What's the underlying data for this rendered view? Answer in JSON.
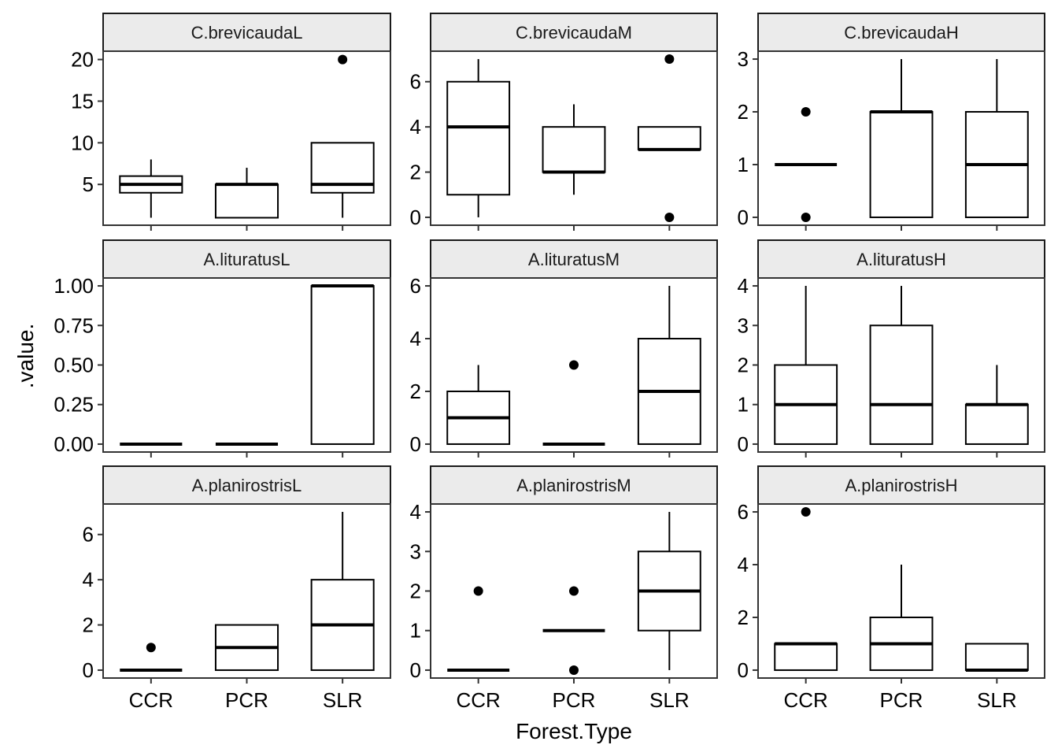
{
  "chart_data": {
    "type": "boxplot",
    "layout": "facet grid 3x3, free y scales",
    "xlabel": "Forest.Type",
    "ylabel": ".value.",
    "categories": [
      "CCR",
      "PCR",
      "SLR"
    ],
    "grid": false,
    "colors": {
      "strip_fill": "#ebebeb",
      "box_fill": "#ffffff",
      "line": "#000000"
    },
    "panels": [
      {
        "title": "C.brevicaudaL",
        "ylim": [
          0.1,
          21
        ],
        "yticks": [
          5,
          10,
          15,
          20
        ],
        "boxes": [
          {
            "category": "CCR",
            "lower_whisker": 1,
            "q1": 4,
            "median": 5,
            "q3": 6,
            "upper_whisker": 8,
            "outliers": []
          },
          {
            "category": "PCR",
            "lower_whisker": 1,
            "q1": 1,
            "median": 5,
            "q3": 5,
            "upper_whisker": 7,
            "outliers": []
          },
          {
            "category": "SLR",
            "lower_whisker": 1,
            "q1": 4,
            "median": 5,
            "q3": 10,
            "upper_whisker": 10,
            "outliers": [
              20
            ]
          }
        ]
      },
      {
        "title": "C.brevicaudaM",
        "ylim": [
          -0.35,
          7.35
        ],
        "yticks": [
          0,
          2,
          4,
          6
        ],
        "boxes": [
          {
            "category": "CCR",
            "lower_whisker": 0,
            "q1": 1,
            "median": 4,
            "q3": 6,
            "upper_whisker": 7,
            "outliers": []
          },
          {
            "category": "PCR",
            "lower_whisker": 1,
            "q1": 2,
            "median": 2,
            "q3": 4,
            "upper_whisker": 5,
            "outliers": []
          },
          {
            "category": "SLR",
            "lower_whisker": 3,
            "q1": 3,
            "median": 3,
            "q3": 4,
            "upper_whisker": 4,
            "outliers": [
              0,
              7
            ]
          }
        ]
      },
      {
        "title": "C.brevicaudaH",
        "ylim": [
          -0.15,
          3.15
        ],
        "yticks": [
          0,
          1,
          2,
          3
        ],
        "boxes": [
          {
            "category": "CCR",
            "lower_whisker": 1,
            "q1": 1,
            "median": 1,
            "q3": 1,
            "upper_whisker": 1,
            "outliers": [
              0,
              2
            ]
          },
          {
            "category": "PCR",
            "lower_whisker": 0,
            "q1": 0,
            "median": 2,
            "q3": 2,
            "upper_whisker": 3,
            "outliers": []
          },
          {
            "category": "SLR",
            "lower_whisker": 0,
            "q1": 0,
            "median": 1,
            "q3": 2,
            "upper_whisker": 3,
            "outliers": []
          }
        ]
      },
      {
        "title": "A.lituratusL",
        "ylim": [
          -0.05,
          1.05
        ],
        "yticks": [
          0,
          0.25,
          0.5,
          0.75,
          1
        ],
        "ytick_labels": [
          "0.00",
          "0.25",
          "0.50",
          "0.75",
          "1.00"
        ],
        "boxes": [
          {
            "category": "CCR",
            "lower_whisker": 0,
            "q1": 0,
            "median": 0,
            "q3": 0,
            "upper_whisker": 0,
            "outliers": []
          },
          {
            "category": "PCR",
            "lower_whisker": 0,
            "q1": 0,
            "median": 0,
            "q3": 0,
            "upper_whisker": 0,
            "outliers": []
          },
          {
            "category": "SLR",
            "lower_whisker": 0,
            "q1": 0,
            "median": 1,
            "q3": 1,
            "upper_whisker": 1,
            "outliers": []
          }
        ]
      },
      {
        "title": "A.lituratusM",
        "ylim": [
          -0.3,
          6.3
        ],
        "yticks": [
          0,
          2,
          4,
          6
        ],
        "boxes": [
          {
            "category": "CCR",
            "lower_whisker": 0,
            "q1": 0,
            "median": 1,
            "q3": 2,
            "upper_whisker": 3,
            "outliers": []
          },
          {
            "category": "PCR",
            "lower_whisker": 0,
            "q1": 0,
            "median": 0,
            "q3": 0,
            "upper_whisker": 0,
            "outliers": [
              3
            ]
          },
          {
            "category": "SLR",
            "lower_whisker": 0,
            "q1": 0,
            "median": 2,
            "q3": 4,
            "upper_whisker": 6,
            "outliers": []
          }
        ]
      },
      {
        "title": "A.lituratusH",
        "ylim": [
          -0.2,
          4.2
        ],
        "yticks": [
          0,
          1,
          2,
          3,
          4
        ],
        "boxes": [
          {
            "category": "CCR",
            "lower_whisker": 0,
            "q1": 0,
            "median": 1,
            "q3": 2,
            "upper_whisker": 4,
            "outliers": []
          },
          {
            "category": "PCR",
            "lower_whisker": 0,
            "q1": 0,
            "median": 1,
            "q3": 3,
            "upper_whisker": 4,
            "outliers": []
          },
          {
            "category": "SLR",
            "lower_whisker": 0,
            "q1": 0,
            "median": 1,
            "q3": 1,
            "upper_whisker": 2,
            "outliers": []
          }
        ]
      },
      {
        "title": "A.planirostrisL",
        "ylim": [
          -0.35,
          7.35
        ],
        "yticks": [
          0,
          2,
          4,
          6
        ],
        "boxes": [
          {
            "category": "CCR",
            "lower_whisker": 0,
            "q1": 0,
            "median": 0,
            "q3": 0,
            "upper_whisker": 0,
            "outliers": [
              1
            ]
          },
          {
            "category": "PCR",
            "lower_whisker": 0,
            "q1": 0,
            "median": 1,
            "q3": 2,
            "upper_whisker": 2,
            "outliers": []
          },
          {
            "category": "SLR",
            "lower_whisker": 0,
            "q1": 0,
            "median": 2,
            "q3": 4,
            "upper_whisker": 7,
            "outliers": []
          }
        ]
      },
      {
        "title": "A.planirostrisM",
        "ylim": [
          -0.2,
          4.2
        ],
        "yticks": [
          0,
          1,
          2,
          3,
          4
        ],
        "boxes": [
          {
            "category": "CCR",
            "lower_whisker": 0,
            "q1": 0,
            "median": 0,
            "q3": 0,
            "upper_whisker": 0,
            "outliers": [
              2
            ]
          },
          {
            "category": "PCR",
            "lower_whisker": 1,
            "q1": 1,
            "median": 1,
            "q3": 1,
            "upper_whisker": 1,
            "outliers": [
              0,
              2
            ]
          },
          {
            "category": "SLR",
            "lower_whisker": 0,
            "q1": 1,
            "median": 2,
            "q3": 3,
            "upper_whisker": 4,
            "outliers": []
          }
        ]
      },
      {
        "title": "A.planirostrisH",
        "ylim": [
          -0.3,
          6.3
        ],
        "yticks": [
          0,
          2,
          4,
          6
        ],
        "boxes": [
          {
            "category": "CCR",
            "lower_whisker": 0,
            "q1": 0,
            "median": 1,
            "q3": 1,
            "upper_whisker": 1,
            "outliers": [
              6
            ]
          },
          {
            "category": "PCR",
            "lower_whisker": 0,
            "q1": 0,
            "median": 1,
            "q3": 2,
            "upper_whisker": 4,
            "outliers": []
          },
          {
            "category": "SLR",
            "lower_whisker": 0,
            "q1": 0,
            "median": 0,
            "q3": 1,
            "upper_whisker": 1,
            "outliers": []
          }
        ]
      }
    ]
  }
}
